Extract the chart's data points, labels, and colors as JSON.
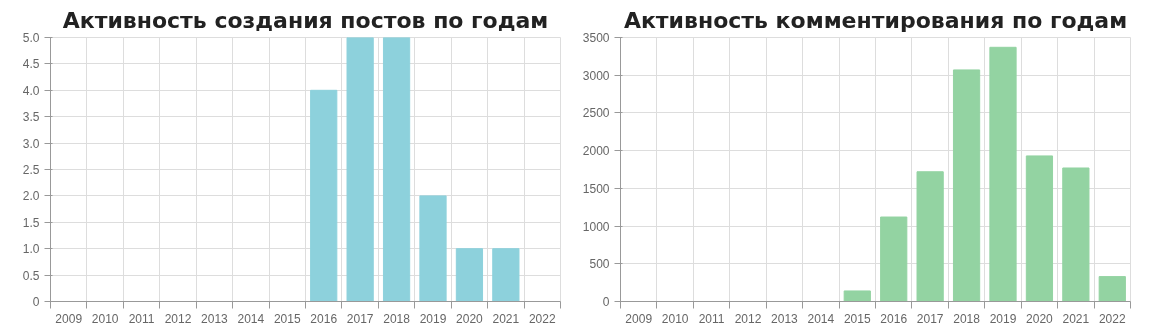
{
  "chart_data": [
    {
      "type": "bar",
      "title": "Активность создания постов по годам",
      "categories": [
        "2009",
        "2010",
        "2011",
        "2012",
        "2013",
        "2014",
        "2015",
        "2016",
        "2017",
        "2018",
        "2019",
        "2020",
        "2021",
        "2022"
      ],
      "values": [
        0,
        0,
        0,
        0,
        0,
        0,
        0,
        4,
        5,
        5,
        2,
        1,
        1,
        0
      ],
      "color": "#8dd1dc",
      "ylim": [
        0,
        5
      ],
      "yticks": [
        0,
        0.5,
        {
          "value": 1,
          "label": "1.0"
        },
        1.5,
        {
          "value": 2,
          "label": "2.0"
        },
        2.5,
        {
          "value": 3,
          "label": "3.0"
        },
        3.5,
        {
          "value": 4,
          "label": "4.0"
        },
        4.5,
        {
          "value": 5,
          "label": "5.0"
        }
      ],
      "grid": true,
      "legend": false
    },
    {
      "type": "bar",
      "title": "Активность комментирования по годам",
      "categories": [
        "2009",
        "2010",
        "2011",
        "2012",
        "2013",
        "2014",
        "2015",
        "2016",
        "2017",
        "2018",
        "2019",
        "2020",
        "2021",
        "2022"
      ],
      "values": [
        0,
        0,
        0,
        0,
        0,
        0,
        140,
        1120,
        1720,
        3070,
        3370,
        1930,
        1770,
        330
      ],
      "color": "#93d3a2",
      "ylim": [
        0,
        3500
      ],
      "yticks": [
        0,
        500,
        1000,
        1500,
        2000,
        2500,
        3000,
        3500
      ],
      "grid": true,
      "legend": false
    }
  ]
}
